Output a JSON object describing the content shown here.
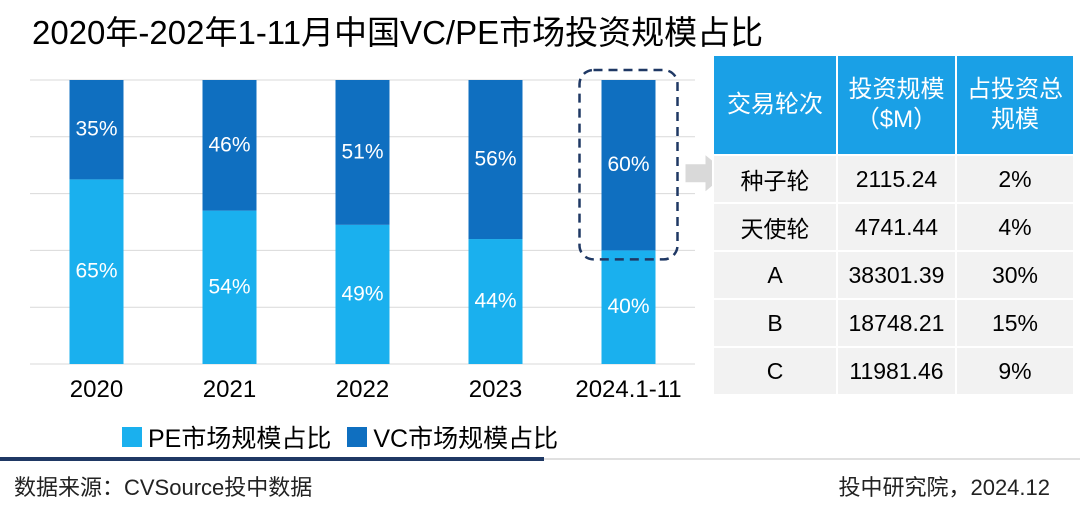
{
  "title": "2020年-202年1-11月中国VC/PE市场投资规模占比",
  "colors": {
    "pe": "#1ab0ee",
    "vc": "#0f6fc0",
    "highlight_border": "#1f3864",
    "arrow": "#d9d9d9",
    "table_header": "#1aa0e6",
    "table_body": "#f2f2f2"
  },
  "chart_data": {
    "type": "bar",
    "stacked": true,
    "categories": [
      "2020",
      "2021",
      "2022",
      "2023",
      "2024.1-11"
    ],
    "series": [
      {
        "name": "PE市场规模占比",
        "values": [
          65,
          54,
          49,
          44,
          40
        ],
        "labels": [
          "65%",
          "54%",
          "49%",
          "44%",
          "40%"
        ]
      },
      {
        "name": "VC市场规模占比",
        "values": [
          35,
          46,
          51,
          56,
          60
        ],
        "labels": [
          "35%",
          "46%",
          "51%",
          "56%",
          "60%"
        ]
      }
    ],
    "ylim": [
      0,
      100
    ],
    "grid": true,
    "legend_position": "bottom-left",
    "highlighted_category": "2024.1-11"
  },
  "legend": {
    "pe": "PE市场规模占比",
    "vc": "VC市场规模占比"
  },
  "table": {
    "headers": [
      "交易轮次",
      "投资规模（$M）",
      "占投资总规模"
    ],
    "rows": [
      [
        "种子轮",
        "2115.24",
        "2%"
      ],
      [
        "天使轮",
        "4741.44",
        "4%"
      ],
      [
        "A",
        "38301.39",
        "30%"
      ],
      [
        "B",
        "18748.21",
        "15%"
      ],
      [
        "C",
        "11981.46",
        "9%"
      ]
    ]
  },
  "footer": {
    "source": "数据来源：CVSource投中数据",
    "org": "投中研究院，2024.12"
  }
}
